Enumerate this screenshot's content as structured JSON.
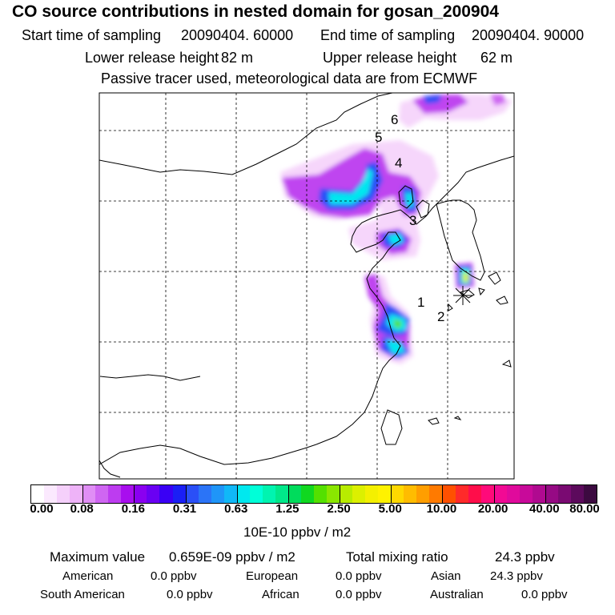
{
  "title": "CO  source contributions in nested domain for gosan_200904",
  "start_label": "Start time of sampling",
  "start_value": "20090404. 60000",
  "end_label": "End time of sampling",
  "end_value": "20090404. 90000",
  "lower_label": "Lower release height",
  "lower_value": "82 m",
  "upper_label": "Upper release height",
  "upper_value": "62 m",
  "info_line": "Passive tracer used, meteorological data are from ECMWF",
  "map_labels": [
    "1",
    "2",
    "3",
    "4",
    "5",
    "6"
  ],
  "colorbar": {
    "ticks": [
      "0.00",
      "0.08",
      "0.16",
      "0.31",
      "0.63",
      "1.25",
      "2.50",
      "5.00",
      "10.00",
      "20.00",
      "40.00",
      "80.00"
    ],
    "unit": "10E-10 ppbv / m2",
    "colors": [
      "#ffffff",
      "#fbe9fe",
      "#f5d0fb",
      "#eeb3f8",
      "#e08ef5",
      "#cf66f2",
      "#bd3cf0",
      "#a80eee",
      "#8a00f0",
      "#6a00f3",
      "#3a00f5",
      "#1a1ff5",
      "#2a4ff7",
      "#2b74f7",
      "#1f95f8",
      "#10b8f8",
      "#00e8ef",
      "#00ffd8",
      "#00f4b0",
      "#00e88a",
      "#00dc5c",
      "#10d820",
      "#54e000",
      "#8ae600",
      "#b8ec00",
      "#dcf000",
      "#f4f000",
      "#fff200",
      "#ffd800",
      "#ffbc00",
      "#ff9e00",
      "#ff7a00",
      "#ff5000",
      "#ff2a2a",
      "#ff0d4a",
      "#ff0a7a",
      "#f20a94",
      "#e00a9c",
      "#c80a9a",
      "#b00a90",
      "#960a84",
      "#7a0a72",
      "#5c0a5c",
      "#3c0a40"
    ]
  },
  "footer": {
    "max_label": "Maximum value",
    "max_value": "0.659E-09 ppbv / m2",
    "total_label": "Total mixing ratio",
    "total_value": "24.3 ppbv",
    "sources": [
      {
        "name": "American",
        "value": "0.0 ppbv"
      },
      {
        "name": "European",
        "value": "0.0 ppbv"
      },
      {
        "name": "Asian",
        "value": "24.3 ppbv"
      },
      {
        "name": "South American",
        "value": "0.0 ppbv"
      },
      {
        "name": "African",
        "value": "0.0 ppbv"
      },
      {
        "name": "Australian",
        "value": "0.0 ppbv"
      }
    ]
  }
}
